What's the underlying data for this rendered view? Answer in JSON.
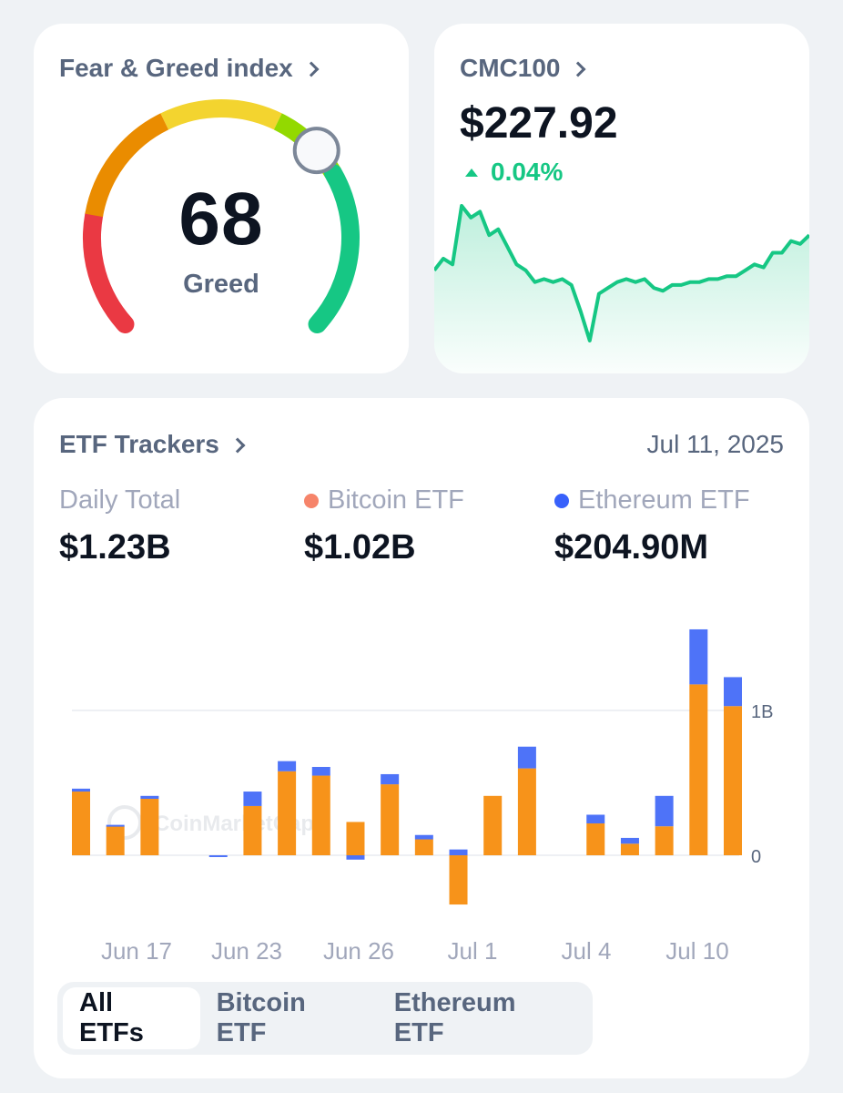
{
  "fear_greed": {
    "title": "Fear & Greed index",
    "value": "68",
    "value_num": 68,
    "label": "Greed",
    "segment_colors": [
      "#ea3943",
      "#ea8c00",
      "#f3d42f",
      "#93d900",
      "#16c784"
    ]
  },
  "cmc100": {
    "title": "CMC100",
    "price": "$227.92",
    "change": "0.04%",
    "change_direction": "up",
    "color": "#16c784"
  },
  "etf": {
    "title": "ETF Trackers",
    "date": "Jul 11, 2025",
    "stats": [
      {
        "label": "Daily Total",
        "value": "$1.23B",
        "dot_color": ""
      },
      {
        "label": "Bitcoin ETF",
        "value": "$1.02B",
        "dot_color": "#f6846a"
      },
      {
        "label": "Ethereum ETF",
        "value": "$204.90M",
        "dot_color": "#3861fb"
      }
    ],
    "tabs": [
      {
        "label": "All ETFs",
        "active": true
      },
      {
        "label": "Bitcoin ETF",
        "active": false
      },
      {
        "label": "Ethereum ETF",
        "active": false
      }
    ],
    "watermark": "CoinMarketCap"
  },
  "chart_data": [
    {
      "type": "bar",
      "stacked": true,
      "x_labels": [
        "Jun 17",
        "Jun 23",
        "Jun 26",
        "Jul 1",
        "Jul 4",
        "Jul 10"
      ],
      "y_tick_labels": [
        "0",
        "1B"
      ],
      "ylim_billions": [
        -0.4,
        1.6
      ],
      "series": [
        {
          "name": "Bitcoin ETF",
          "color": "#f7931a",
          "values": [
            0.44,
            0.2,
            0.39,
            null,
            0.0,
            0.34,
            0.58,
            0.55,
            0.23,
            0.49,
            0.11,
            -0.34,
            0.41,
            0.6,
            null,
            0.22,
            0.08,
            0.2,
            1.18,
            1.03
          ]
        },
        {
          "name": "Ethereum ETF",
          "color": "#4e73f8",
          "values": [
            0.02,
            0.01,
            0.02,
            null,
            -0.01,
            0.1,
            0.07,
            0.06,
            -0.03,
            0.07,
            0.03,
            0.04,
            0.0,
            0.15,
            null,
            0.06,
            0.04,
            0.21,
            0.38,
            0.2
          ]
        }
      ]
    },
    {
      "type": "line",
      "title": "CMC100",
      "values": [
        227.2,
        227.4,
        227.3,
        228.3,
        228.1,
        228.2,
        227.8,
        227.9,
        227.6,
        227.3,
        227.2,
        227.0,
        227.05,
        227.0,
        227.05,
        226.95,
        226.5,
        226.0,
        226.8,
        226.9,
        227.0,
        227.05,
        227.0,
        227.05,
        226.9,
        226.85,
        226.95,
        226.95,
        227.0,
        227.0,
        227.05,
        227.05,
        227.1,
        227.1,
        227.2,
        227.3,
        227.25,
        227.5,
        227.5,
        227.7,
        227.65,
        227.8
      ]
    }
  ]
}
